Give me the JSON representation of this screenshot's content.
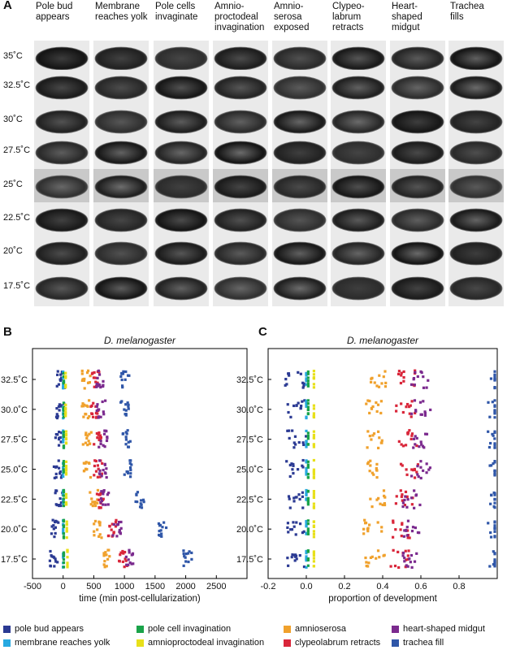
{
  "panels": {
    "a": "A",
    "b": "B",
    "c": "C"
  },
  "panel_a": {
    "stages": [
      "Pole bud\nappears",
      "Membrane\nreaches yolk",
      "Pole cells\ninvaginate",
      "Amnio-\nproctodeal\ninvagination",
      "Amnio-\nserosa\nexposed",
      "Clypeo-\nlabrum\nretracts",
      "Heart-\nshaped\nmidgut",
      "Trachea\nfills"
    ],
    "temperatures": [
      "35˚C",
      "32.5˚C",
      "30˚C",
      "27.5˚C",
      "25˚C",
      "22.5˚C",
      "20˚C",
      "17.5˚C"
    ]
  },
  "colors": {
    "pole_bud": "#2b3a93",
    "membrane": "#27a9e1",
    "pole_cell": "#1aa34a",
    "amnioproctodeal": "#e8e01a",
    "amnioserosa": "#f0a12c",
    "clypeolabrum": "#d9263a",
    "midgut": "#7b2a8e",
    "trachea": "#2f56a8"
  },
  "legend": [
    {
      "label": "pole bud appears",
      "color_key": "pole_bud"
    },
    {
      "label": "membrane reaches yolk",
      "color_key": "membrane"
    },
    {
      "label": "pole cell invagination",
      "color_key": "pole_cell"
    },
    {
      "label": "amnioproctodeal invagination",
      "color_key": "amnioproctodeal"
    },
    {
      "label": "amnioserosa",
      "color_key": "amnioserosa"
    },
    {
      "label": "clypeolabrum retracts",
      "color_key": "clypeolabrum"
    },
    {
      "label": "heart-shaped midgut",
      "color_key": "midgut"
    },
    {
      "label": "trachea fill",
      "color_key": "trachea"
    }
  ],
  "chart_data": [
    {
      "type": "scatter",
      "title": "D. melanogaster",
      "xlabel": "time (min post-cellularization)",
      "ylabel": "",
      "xlim": [
        -500,
        3000
      ],
      "xticks": [
        -500,
        0,
        500,
        1000,
        1500,
        2000,
        2500
      ],
      "categories": [
        "32.5˚C",
        "30.0˚C",
        "27.5˚C",
        "25.0˚C",
        "22.5˚C",
        "20.0˚C",
        "17.5˚C"
      ],
      "series": [
        {
          "name": "pole bud appears",
          "values": [
            -40,
            -50,
            -60,
            -80,
            -60,
            -120,
            -150
          ]
        },
        {
          "name": "membrane reaches yolk",
          "values": [
            0,
            0,
            0,
            0,
            0,
            0,
            0
          ]
        },
        {
          "name": "pole cell invagination",
          "values": [
            10,
            10,
            10,
            10,
            10,
            10,
            10
          ]
        },
        {
          "name": "amnioproctodeal invagination",
          "values": [
            40,
            40,
            50,
            50,
            50,
            60,
            70
          ]
        },
        {
          "name": "amnioserosa",
          "values": [
            380,
            360,
            390,
            400,
            500,
            560,
            720
          ]
        },
        {
          "name": "clypeolabrum retracts",
          "values": [
            520,
            520,
            560,
            570,
            620,
            800,
            980
          ]
        },
        {
          "name": "heart-shaped midgut",
          "values": [
            600,
            620,
            650,
            650,
            680,
            880,
            1080
          ]
        },
        {
          "name": "trachea fill",
          "values": [
            1010,
            1000,
            1030,
            1060,
            1250,
            1630,
            2030
          ]
        }
      ]
    },
    {
      "type": "scatter",
      "title": "D. melanogaster",
      "xlabel": "proportion of development",
      "ylabel": "",
      "xlim": [
        -0.2,
        1.0
      ],
      "xticks": [
        -0.2,
        0.0,
        0.2,
        0.4,
        0.6,
        0.8
      ],
      "categories": [
        "32.5˚C",
        "30.0˚C",
        "27.5˚C",
        "25.0˚C",
        "22.5˚C",
        "20.0˚C",
        "17.5˚C"
      ],
      "series": [
        {
          "name": "pole bud appears",
          "values": [
            -0.06,
            -0.05,
            -0.05,
            -0.06,
            -0.05,
            -0.06,
            -0.06
          ]
        },
        {
          "name": "membrane reaches yolk",
          "values": [
            0,
            0,
            0,
            0,
            0,
            0,
            0
          ]
        },
        {
          "name": "pole cell invagination",
          "values": [
            0.01,
            0.01,
            0.01,
            0.01,
            0.01,
            0.01,
            0.01
          ]
        },
        {
          "name": "amnioproctodeal invagination",
          "values": [
            0.04,
            0.04,
            0.04,
            0.04,
            0.04,
            0.04,
            0.04
          ]
        },
        {
          "name": "amnioserosa",
          "values": [
            0.37,
            0.36,
            0.36,
            0.37,
            0.38,
            0.35,
            0.36
          ]
        },
        {
          "name": "clypeolabrum retracts",
          "values": [
            0.52,
            0.52,
            0.53,
            0.54,
            0.51,
            0.5,
            0.49
          ]
        },
        {
          "name": "heart-shaped midgut",
          "values": [
            0.6,
            0.6,
            0.6,
            0.6,
            0.55,
            0.55,
            0.55
          ]
        },
        {
          "name": "trachea fill",
          "values": [
            1.0,
            1.0,
            1.0,
            1.0,
            1.0,
            1.0,
            1.0
          ]
        }
      ]
    }
  ]
}
